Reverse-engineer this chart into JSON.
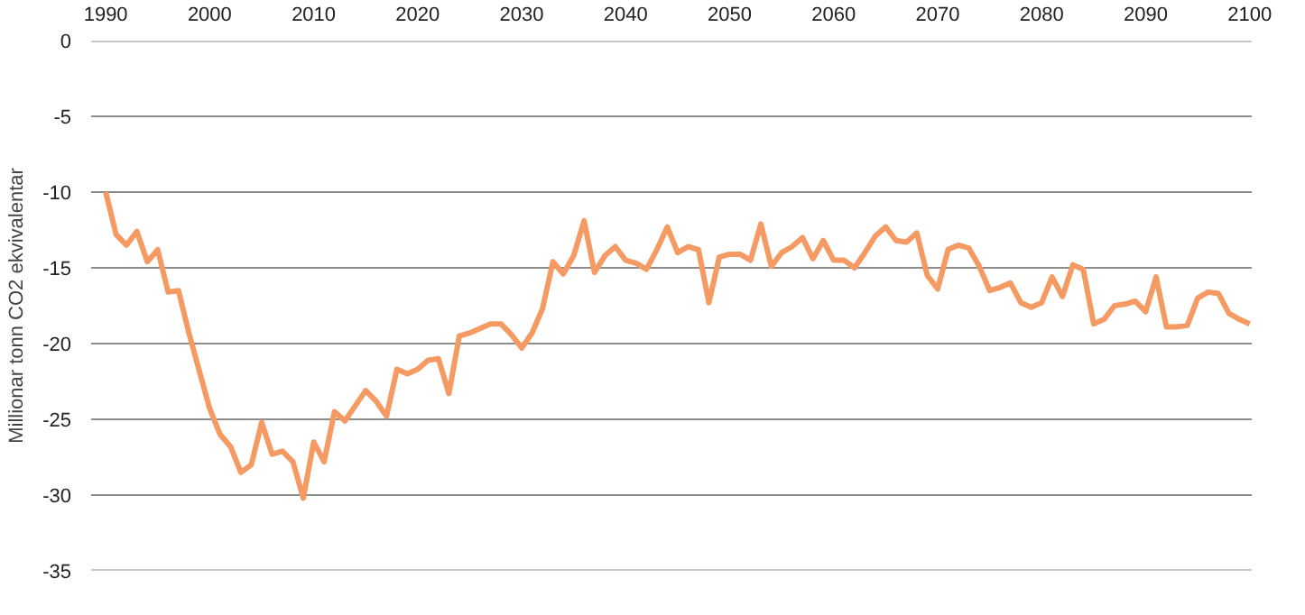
{
  "chart_data": {
    "type": "line",
    "ylabel": "Millionar tonn CO2 ekvivalentar",
    "x": [
      1990,
      1991,
      1992,
      1993,
      1994,
      1995,
      1996,
      1997,
      1998,
      1999,
      2000,
      2001,
      2002,
      2003,
      2004,
      2005,
      2006,
      2007,
      2008,
      2009,
      2010,
      2011,
      2012,
      2013,
      2014,
      2015,
      2016,
      2017,
      2018,
      2019,
      2020,
      2021,
      2022,
      2023,
      2024,
      2025,
      2026,
      2027,
      2028,
      2029,
      2030,
      2031,
      2032,
      2033,
      2034,
      2035,
      2036,
      2037,
      2038,
      2039,
      2040,
      2041,
      2042,
      2043,
      2044,
      2045,
      2046,
      2047,
      2048,
      2049,
      2050,
      2051,
      2052,
      2053,
      2054,
      2055,
      2056,
      2057,
      2058,
      2059,
      2060,
      2061,
      2062,
      2063,
      2064,
      2065,
      2066,
      2067,
      2068,
      2069,
      2070,
      2071,
      2072,
      2073,
      2074,
      2075,
      2076,
      2077,
      2078,
      2079,
      2080,
      2081,
      2082,
      2083,
      2084,
      2085,
      2086,
      2087,
      2088,
      2089,
      2090,
      2091,
      2092,
      2093,
      2094,
      2095,
      2096,
      2097,
      2098,
      2099,
      2100
    ],
    "series": [
      {
        "color": "#f49a62",
        "values": [
          -10,
          -12.8,
          -13.5,
          -12.6,
          -14.6,
          -13.8,
          -16.6,
          -16.5,
          -19.3,
          -21.8,
          -24.3,
          -26,
          -26.8,
          -28.5,
          -28,
          -25.2,
          -27.3,
          -27.1,
          -27.8,
          -30.2,
          -26.5,
          -27.8,
          -24.5,
          -25.1,
          -24.1,
          -23.1,
          -23.8,
          -24.8,
          -21.7,
          -22,
          -21.7,
          -21.1,
          -21,
          -23.3,
          -19.5,
          -19.3,
          -19,
          -18.7,
          -18.7,
          -19.4,
          -20.3,
          -19.3,
          -17.7,
          -14.6,
          -15.4,
          -14.2,
          -11.9,
          -15.3,
          -14.2,
          -13.6,
          -14.5,
          -14.7,
          -15.1,
          -13.8,
          -12.3,
          -14,
          -13.6,
          -13.8,
          -17.3,
          -14.3,
          -14.1,
          -14.1,
          -14.5,
          -12.1,
          -14.9,
          -14,
          -13.6,
          -13,
          -14.4,
          -13.2,
          -14.5,
          -14.5,
          -15,
          -14,
          -12.9,
          -12.3,
          -13.2,
          -13.3,
          -12.7,
          -15.5,
          -16.4,
          -13.8,
          -13.5,
          -13.7,
          -14.9,
          -16.5,
          -16.3,
          -16,
          -17.3,
          -17.6,
          -17.3,
          -15.6,
          -16.9,
          -14.8,
          -15.1,
          -18.7,
          -18.4,
          -17.5,
          -17.4,
          -17.2,
          -17.9,
          -15.6,
          -18.9,
          -18.9,
          -18.8,
          -17,
          -16.6,
          -16.7,
          -18,
          -18.4,
          -18.7
        ]
      }
    ],
    "xlim": [
      1988.6,
      2100.2
    ],
    "ylim": [
      -35,
      0
    ],
    "xticks": [
      1990,
      2000,
      2010,
      2020,
      2030,
      2040,
      2050,
      2060,
      2070,
      2080,
      2090,
      2100
    ],
    "yticks": [
      0,
      -5,
      -10,
      -15,
      -20,
      -25,
      -30,
      -35
    ],
    "grid": "y",
    "line_style": "solid",
    "marker": "none"
  }
}
